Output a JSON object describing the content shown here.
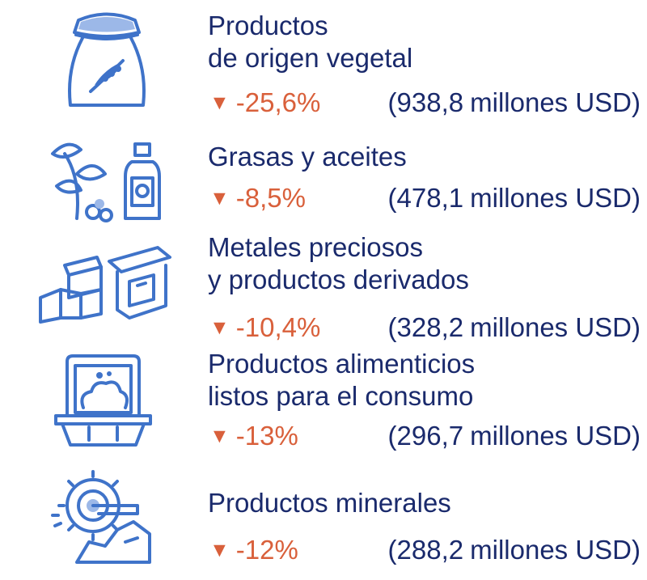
{
  "colors": {
    "text": "#1a2a6c",
    "decrease": "#d9603b",
    "icon": "#3f73c9"
  },
  "decrease_marker": "▼",
  "items": [
    {
      "icon": "grain-sack-icon",
      "name_lines": [
        "Productos",
        "de origen vegetal"
      ],
      "change": "-25,6%",
      "amount_open": "(938,8",
      "amount_unit": "millones USD)"
    },
    {
      "icon": "plant-oil-icon",
      "name_lines": [
        "Grasas y aceites"
      ],
      "change": "-8,5%",
      "amount_open": "(478,1",
      "amount_unit": "millones USD)"
    },
    {
      "icon": "metal-bars-icon",
      "name_lines": [
        "Metales preciosos",
        "y productos derivados"
      ],
      "change": "-10,4%",
      "amount_open": "(328,2",
      "amount_unit": "millones USD)"
    },
    {
      "icon": "food-container-icon",
      "name_lines": [
        "Productos alimenticios",
        "listos para el consumo"
      ],
      "change": "-13%",
      "amount_open": "(296,7",
      "amount_unit": "millones USD)"
    },
    {
      "icon": "mining-excavator-icon",
      "name_lines": [
        "Productos minerales"
      ],
      "change": "-12%",
      "amount_open": "(288,2",
      "amount_unit": "millones USD)"
    }
  ]
}
